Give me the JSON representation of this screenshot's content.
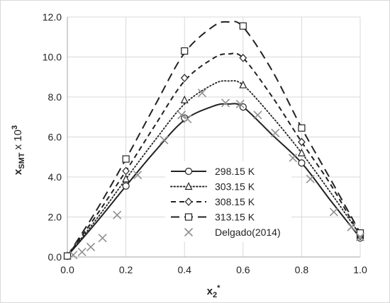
{
  "chart_data": {
    "type": "line",
    "xlabel": {
      "main": "x",
      "sub": "2",
      "sup": "*"
    },
    "ylabel": {
      "main": "x",
      "sub": "SMT",
      "mid": " x 10",
      "sup": "3"
    },
    "xlim": [
      0,
      1
    ],
    "ylim": [
      0,
      12
    ],
    "x_ticks": [
      "0.0",
      "0.2",
      "0.4",
      "0.6",
      "0.8",
      "1.0"
    ],
    "y_ticks": [
      "0.0",
      "2.0",
      "4.0",
      "6.0",
      "8.0",
      "10.0",
      "12.0"
    ],
    "grid": {
      "horizontal": true,
      "vertical": true
    },
    "legend_position": "bottom-center",
    "series": [
      {
        "name": "298.15 K",
        "line_style": "solid",
        "marker": "circle",
        "curve": [
          [
            0.0,
            0.05
          ],
          [
            0.1,
            1.75
          ],
          [
            0.2,
            3.55
          ],
          [
            0.3,
            5.3
          ],
          [
            0.4,
            6.85
          ],
          [
            0.5,
            7.55
          ],
          [
            0.55,
            7.65
          ],
          [
            0.6,
            7.5
          ],
          [
            0.7,
            6.1
          ],
          [
            0.8,
            4.7
          ],
          [
            0.9,
            2.8
          ],
          [
            1.0,
            0.95
          ]
        ],
        "points": [
          [
            0.0,
            0.05
          ],
          [
            0.2,
            3.55
          ],
          [
            0.4,
            6.95
          ],
          [
            0.6,
            7.5
          ],
          [
            0.8,
            4.7
          ],
          [
            1.0,
            0.95
          ]
        ]
      },
      {
        "name": "303.15 K",
        "line_style": "dotted",
        "marker": "triangle",
        "curve": [
          [
            0.0,
            0.05
          ],
          [
            0.1,
            1.9
          ],
          [
            0.2,
            3.9
          ],
          [
            0.3,
            5.85
          ],
          [
            0.4,
            7.65
          ],
          [
            0.5,
            8.65
          ],
          [
            0.55,
            8.8
          ],
          [
            0.6,
            8.6
          ],
          [
            0.7,
            7.0
          ],
          [
            0.8,
            5.2
          ],
          [
            0.9,
            3.2
          ],
          [
            1.0,
            1.1
          ]
        ],
        "points": [
          [
            0.0,
            0.05
          ],
          [
            0.2,
            3.9
          ],
          [
            0.4,
            7.85
          ],
          [
            0.6,
            8.6
          ],
          [
            0.8,
            5.2
          ],
          [
            1.0,
            1.1
          ]
        ]
      },
      {
        "name": "308.15 K",
        "line_style": "dashed",
        "marker": "diamond",
        "curve": [
          [
            0.0,
            0.05
          ],
          [
            0.1,
            2.1
          ],
          [
            0.2,
            4.3
          ],
          [
            0.3,
            6.6
          ],
          [
            0.4,
            8.8
          ],
          [
            0.5,
            9.95
          ],
          [
            0.55,
            10.15
          ],
          [
            0.6,
            9.95
          ],
          [
            0.7,
            8.0
          ],
          [
            0.8,
            5.75
          ],
          [
            0.9,
            3.6
          ],
          [
            1.0,
            1.05
          ]
        ],
        "points": [
          [
            0.0,
            0.05
          ],
          [
            0.2,
            4.3
          ],
          [
            0.4,
            8.95
          ],
          [
            0.6,
            9.95
          ],
          [
            0.8,
            5.75
          ],
          [
            1.0,
            1.05
          ]
        ]
      },
      {
        "name": "313.15 K",
        "line_style": "long-dashed",
        "marker": "square",
        "curve": [
          [
            0.0,
            0.05
          ],
          [
            0.1,
            2.35
          ],
          [
            0.2,
            4.9
          ],
          [
            0.3,
            7.6
          ],
          [
            0.4,
            10.2
          ],
          [
            0.5,
            11.55
          ],
          [
            0.55,
            11.75
          ],
          [
            0.6,
            11.5
          ],
          [
            0.7,
            9.3
          ],
          [
            0.8,
            6.45
          ],
          [
            0.9,
            3.85
          ],
          [
            1.0,
            1.2
          ]
        ],
        "points": [
          [
            0.0,
            0.05
          ],
          [
            0.2,
            4.9
          ],
          [
            0.4,
            10.3
          ],
          [
            0.6,
            11.55
          ],
          [
            0.8,
            6.45
          ],
          [
            1.0,
            1.2
          ]
        ]
      },
      {
        "name": "Delgado(2014)",
        "line_style": "none",
        "marker": "x",
        "color": "#909090",
        "points": [
          [
            0.02,
            0.1
          ],
          [
            0.05,
            0.25
          ],
          [
            0.08,
            0.5
          ],
          [
            0.12,
            0.95
          ],
          [
            0.17,
            2.1
          ],
          [
            0.24,
            4.1
          ],
          [
            0.33,
            5.85
          ],
          [
            0.39,
            7.1
          ],
          [
            0.41,
            6.9
          ],
          [
            0.46,
            8.2
          ],
          [
            0.54,
            7.7
          ],
          [
            0.59,
            7.65
          ],
          [
            0.65,
            7.1
          ],
          [
            0.71,
            6.2
          ],
          [
            0.77,
            4.95
          ],
          [
            0.83,
            3.9
          ],
          [
            0.91,
            2.25
          ],
          [
            0.97,
            1.5
          ],
          [
            1.0,
            1.0
          ]
        ]
      }
    ]
  }
}
